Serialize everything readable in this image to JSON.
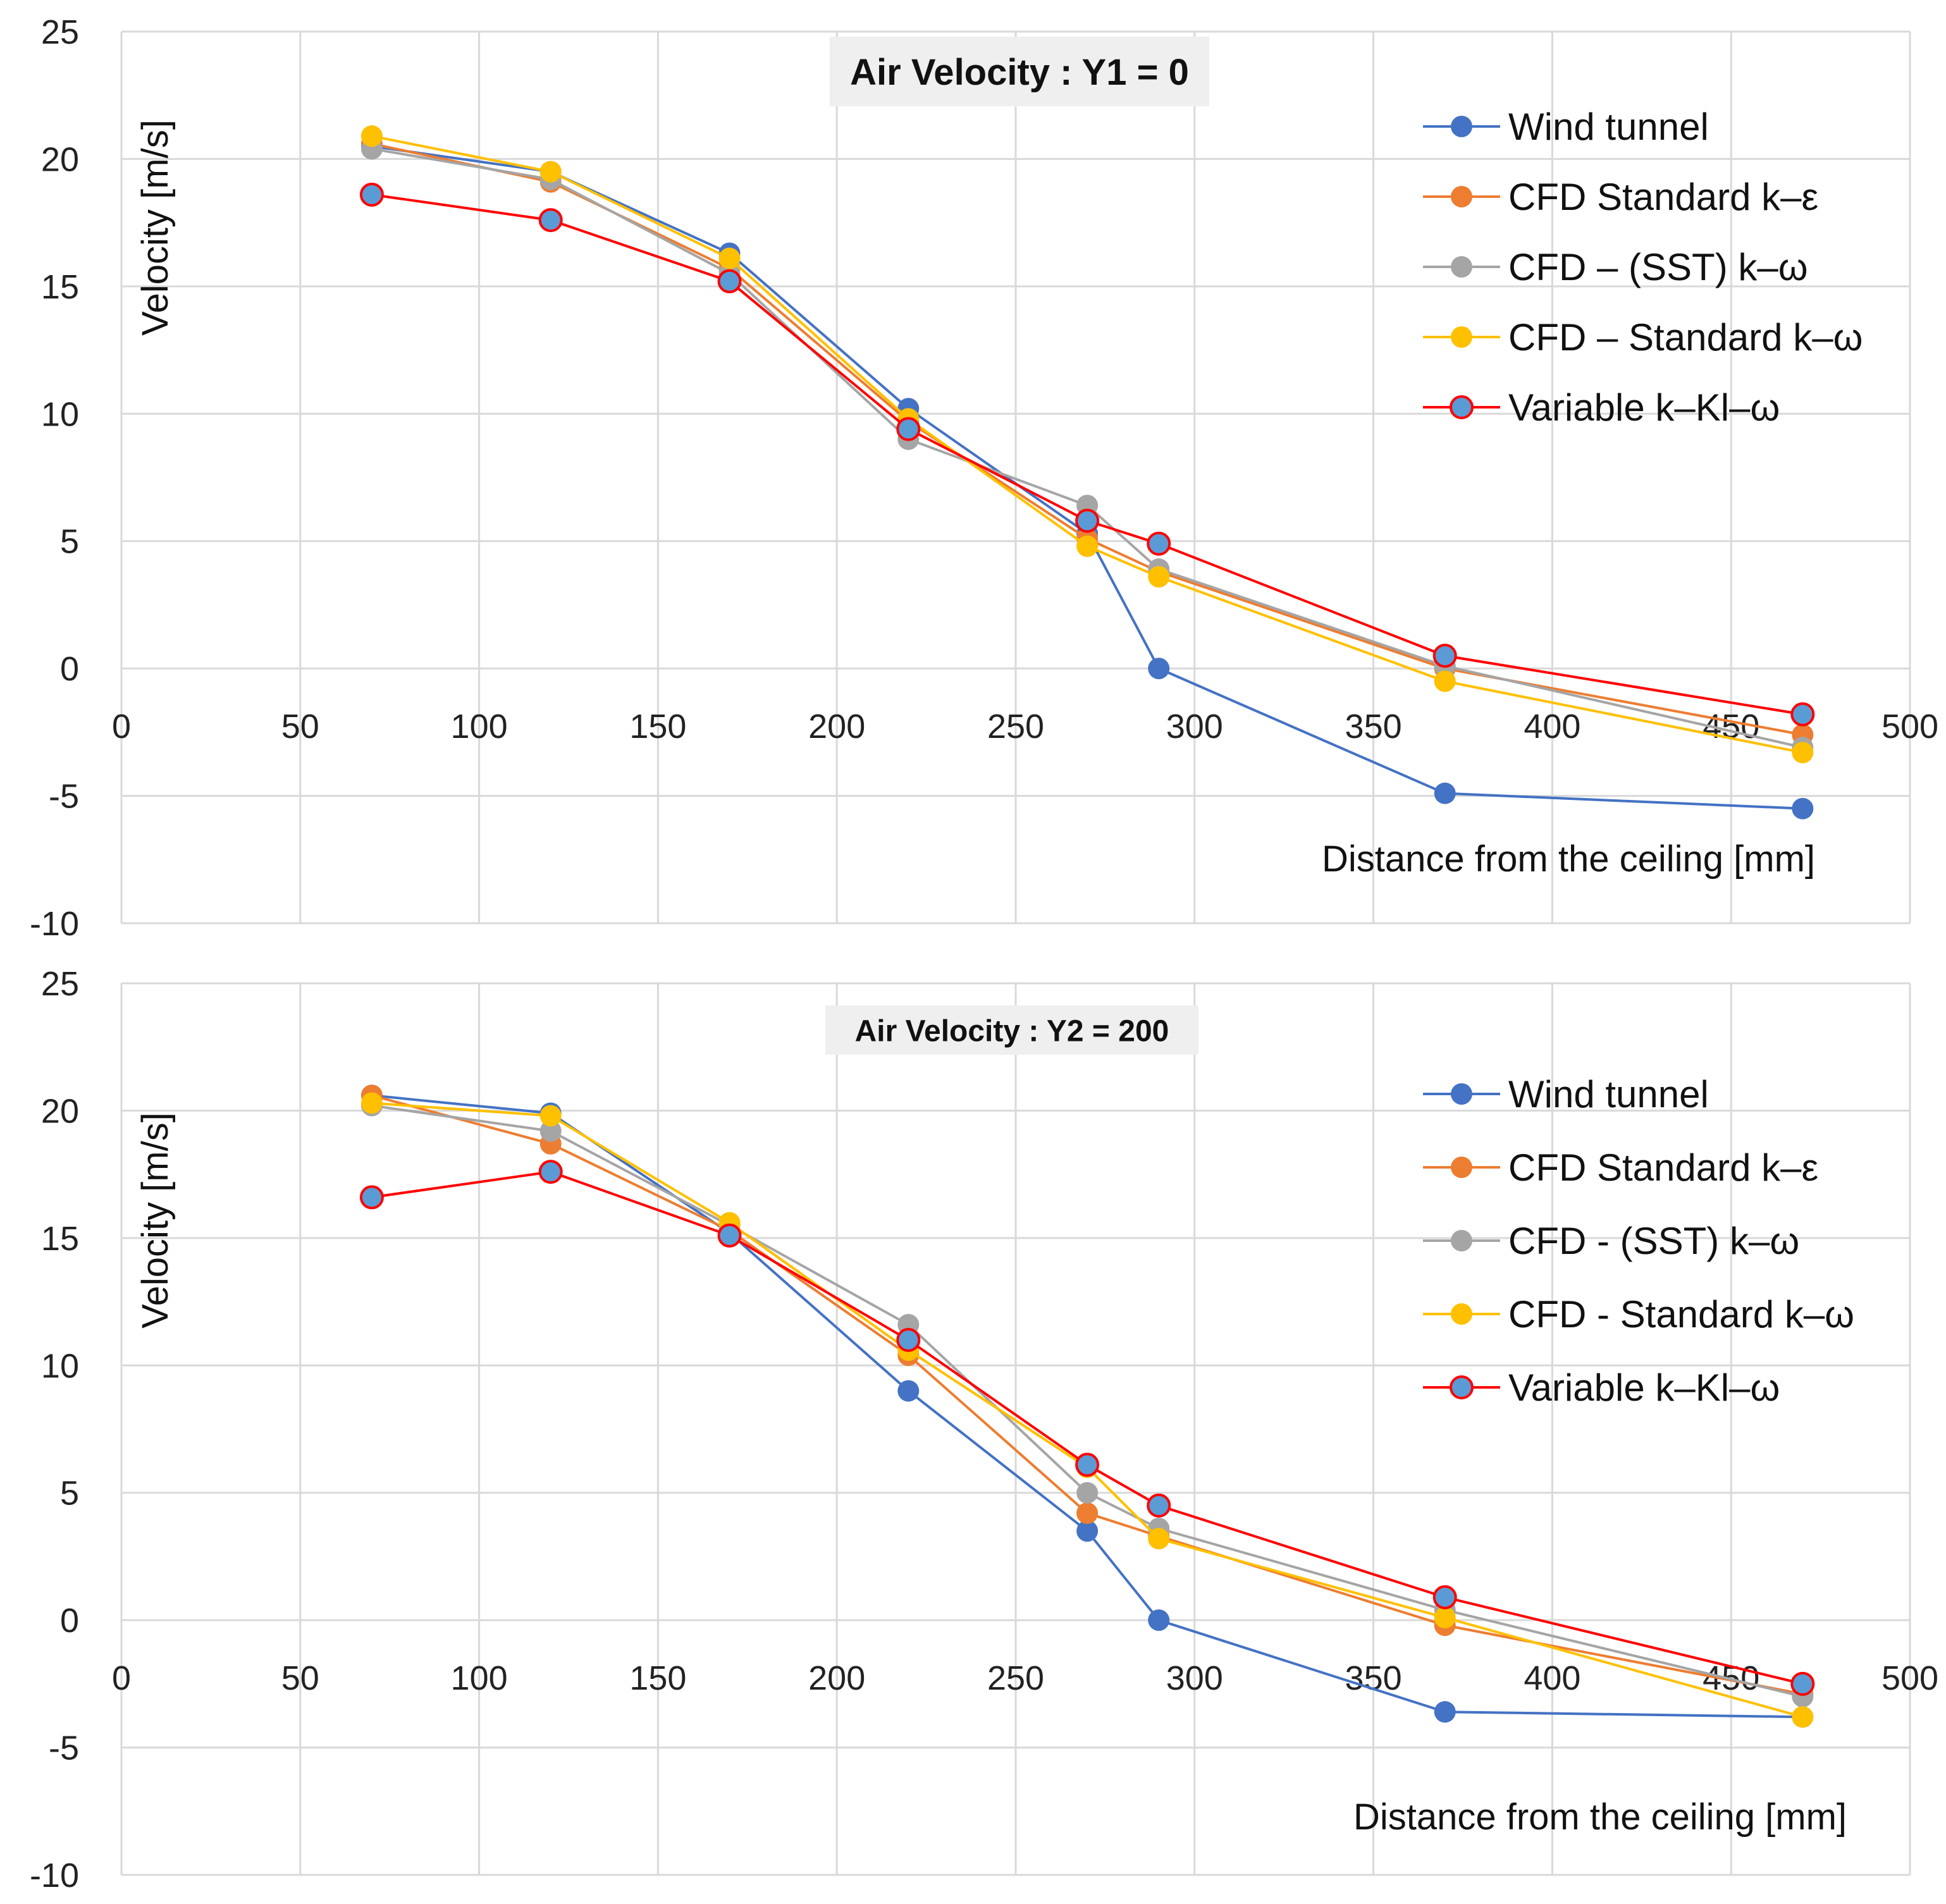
{
  "colors": {
    "wind_tunnel": "#4472C4",
    "cfd_ke": "#ED7D31",
    "cfd_sst": "#A5A5A5",
    "cfd_kw": "#FFC000",
    "variable": "#FF0000",
    "variable_fill": "#5B9BD5",
    "grid": "#D9D9D9",
    "title_bg": "#EFEFEF"
  },
  "chart_data": [
    {
      "type": "line",
      "title": "Air Velocity : Y1 = 0",
      "xlabel": "Distance from the ceiling [mm]",
      "ylabel": "Velocity [m/s]",
      "xlim": [
        0,
        500
      ],
      "ylim": [
        -10,
        25
      ],
      "xticks": [
        0,
        50,
        100,
        150,
        200,
        250,
        300,
        350,
        400,
        450,
        500
      ],
      "yticks": [
        -10,
        -5,
        0,
        5,
        10,
        15,
        20,
        25
      ],
      "grid": true,
      "legend_position": "top-right",
      "x": [
        70,
        120,
        170,
        220,
        270,
        290,
        370,
        470
      ],
      "series": [
        {
          "name": "Wind tunnel",
          "color_key": "wind_tunnel",
          "values": [
            20.5,
            19.5,
            16.3,
            10.2,
            5.3,
            0.0,
            -4.9,
            -5.5
          ]
        },
        {
          "name": "CFD Standard k–ε",
          "color_key": "cfd_ke",
          "values": [
            20.6,
            19.1,
            15.7,
            9.7,
            5.1,
            3.8,
            0.0,
            -2.6
          ]
        },
        {
          "name": "CFD – (SST) k–ω",
          "color_key": "cfd_sst",
          "values": [
            20.4,
            19.2,
            15.5,
            9.0,
            6.4,
            3.9,
            0.1,
            -3.1
          ]
        },
        {
          "name": "CFD – Standard k–ω",
          "color_key": "cfd_kw",
          "values": [
            20.9,
            19.5,
            16.1,
            9.8,
            4.8,
            3.6,
            -0.5,
            -3.3
          ]
        },
        {
          "name": "Variable k–Kl–ω",
          "color_key": "variable",
          "fill_key": "variable_fill",
          "values": [
            18.6,
            17.6,
            15.2,
            9.4,
            5.8,
            4.9,
            0.5,
            -1.8
          ]
        }
      ]
    },
    {
      "type": "line",
      "title": "Air Velocity : Y2 = 200",
      "xlabel": "Distance from the ceiling [mm]",
      "ylabel": "Velocity [m/s]",
      "xlim": [
        0,
        500
      ],
      "ylim": [
        -10,
        25
      ],
      "xticks": [
        0,
        50,
        100,
        150,
        200,
        250,
        300,
        350,
        400,
        450,
        500
      ],
      "yticks": [
        -10,
        -5,
        0,
        5,
        10,
        15,
        20,
        25
      ],
      "grid": true,
      "legend_position": "top-right",
      "x": [
        70,
        120,
        170,
        220,
        270,
        290,
        370,
        470
      ],
      "series": [
        {
          "name": "Wind tunnel",
          "color_key": "wind_tunnel",
          "values": [
            20.6,
            19.9,
            15.2,
            9.0,
            3.5,
            0.0,
            -3.6,
            -3.8
          ]
        },
        {
          "name": "CFD Standard k–ε",
          "color_key": "cfd_ke",
          "values": [
            20.6,
            18.7,
            15.3,
            10.4,
            4.2,
            3.3,
            -0.2,
            -2.9
          ]
        },
        {
          "name": "CFD - (SST) k–ω",
          "color_key": "cfd_sst",
          "values": [
            20.2,
            19.2,
            15.5,
            11.6,
            5.0,
            3.6,
            0.4,
            -3.0
          ]
        },
        {
          "name": "CFD - Standard k–ω",
          "color_key": "cfd_kw",
          "values": [
            20.3,
            19.8,
            15.6,
            10.6,
            6.0,
            3.2,
            0.1,
            -3.8
          ]
        },
        {
          "name": "Variable k–Kl–ω",
          "color_key": "variable",
          "fill_key": "variable_fill",
          "values": [
            16.6,
            17.6,
            15.1,
            11.0,
            6.1,
            4.5,
            0.9,
            -2.5
          ]
        }
      ]
    }
  ]
}
